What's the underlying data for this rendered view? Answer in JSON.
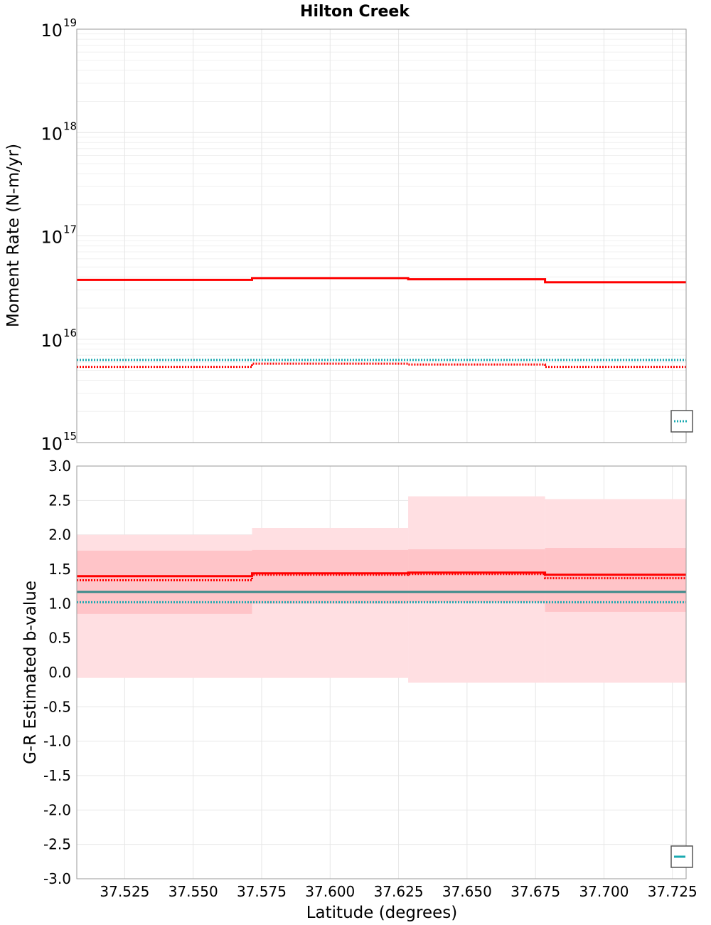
{
  "chart_data": {
    "title": "Hilton Creek",
    "colors": {
      "red": "#ff0000",
      "teal": "#1aa9b0",
      "teal_dark": "#3a8a8a",
      "band_outer": "#ffdfe2",
      "band_inner": "#ffc4c8",
      "grid": "#e6e6e6",
      "frame": "#9a9a9a"
    },
    "x": {
      "label": "Latitude (degrees)",
      "lim": [
        37.5075,
        37.73
      ],
      "ticks": [
        37.525,
        37.55,
        37.575,
        37.6,
        37.625,
        37.65,
        37.675,
        37.7,
        37.725
      ],
      "tick_labels": [
        "37.525",
        "37.550",
        "37.575",
        "37.600",
        "37.625",
        "37.650",
        "37.675",
        "37.700",
        "37.725"
      ]
    },
    "segments": [
      37.5075,
      37.5715,
      37.6285,
      37.6785,
      37.73
    ],
    "panels": [
      {
        "type": "line",
        "scale": "log",
        "ylabel": "Moment Rate (N-m/yr)",
        "ylim": [
          1000000000000000.0,
          1e+19
        ],
        "y_ticks": [
          {
            "base": "10",
            "exp": "15"
          },
          {
            "base": "10",
            "exp": "16"
          },
          {
            "base": "10",
            "exp": "17"
          },
          {
            "base": "10",
            "exp": "18"
          },
          {
            "base": "10",
            "exp": "19"
          }
        ],
        "grid": true,
        "legend": "bottom-right",
        "series": [
          {
            "style": "solid",
            "color": "red",
            "values": [
              3.75e+16,
              3.9e+16,
              3.8e+16,
              3.55e+16
            ]
          },
          {
            "style": "dotted",
            "color": "teal",
            "values": [
              6300000000000000.0,
              6300000000000000.0,
              6300000000000000.0,
              6300000000000000.0
            ]
          },
          {
            "style": "dotted",
            "color": "red",
            "values": [
              5400000000000000.0,
              5800000000000000.0,
              5700000000000000.0,
              5400000000000000.0
            ]
          }
        ]
      },
      {
        "type": "line",
        "scale": "linear",
        "ylabel": "G-R Estimated b-value",
        "ylim": [
          -3.0,
          3.0
        ],
        "y_ticks": [
          "3.0",
          "2.5",
          "2.0",
          "1.5",
          "1.0",
          "0.5",
          "0.0",
          "-0.5",
          "-1.0",
          "-1.5",
          "-2.0",
          "-2.5",
          "-3.0"
        ],
        "grid": true,
        "legend": "bottom-right",
        "bands": [
          {
            "color": "band_outer",
            "lower": [
              -0.08,
              -0.08,
              -0.15,
              -0.15
            ],
            "upper": [
              2.0,
              2.1,
              2.56,
              2.52
            ]
          },
          {
            "color": "band_inner",
            "lower": [
              0.85,
              1.0,
              1.02,
              0.88
            ],
            "upper": [
              1.77,
              1.78,
              1.79,
              1.81
            ]
          }
        ],
        "series": [
          {
            "style": "solid",
            "color": "red",
            "values": [
              1.4,
              1.44,
              1.45,
              1.42
            ]
          },
          {
            "style": "dotted",
            "color": "red",
            "values": [
              1.34,
              1.42,
              1.43,
              1.37
            ]
          },
          {
            "style": "solid",
            "color": "teal_dark",
            "values": [
              1.17,
              1.17,
              1.17,
              1.17
            ]
          },
          {
            "style": "dotted",
            "color": "teal",
            "values": [
              1.02,
              1.02,
              1.02,
              1.02
            ]
          }
        ]
      }
    ]
  }
}
